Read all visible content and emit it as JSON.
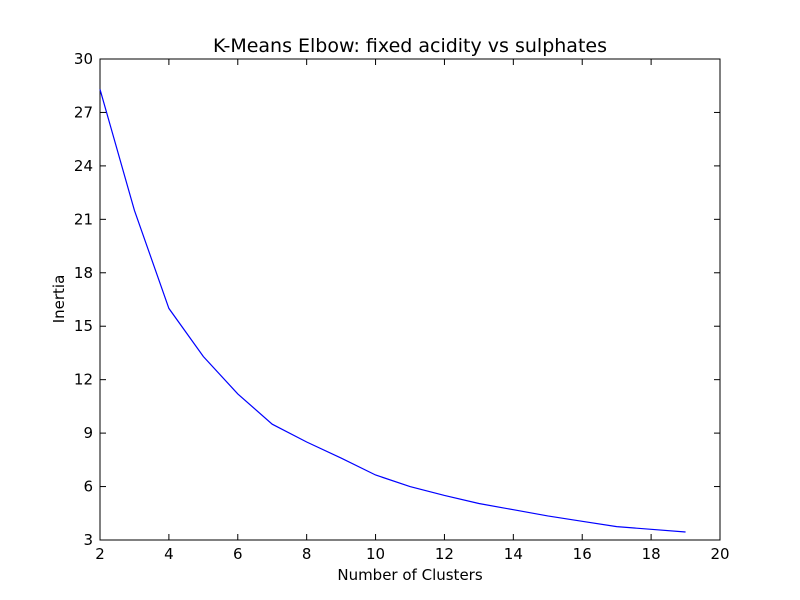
{
  "chart_data": {
    "type": "line",
    "title": "K-Means Elbow: fixed acidity vs sulphates",
    "xlabel": "Number of Clusters",
    "ylabel": "Inertia",
    "xlim": [
      2,
      20
    ],
    "ylim": [
      3,
      30
    ],
    "xticks": [
      2,
      4,
      6,
      8,
      10,
      12,
      14,
      16,
      18,
      20
    ],
    "yticks": [
      3,
      6,
      9,
      12,
      15,
      18,
      21,
      24,
      27,
      30
    ],
    "grid": false,
    "series": [
      {
        "color": "#0000ff",
        "x": [
          2,
          3,
          4,
          5,
          6,
          7,
          8,
          9,
          10,
          11,
          12,
          13,
          14,
          15,
          16,
          17,
          18,
          19
        ],
        "y": [
          28.3,
          21.5,
          16.0,
          13.3,
          11.2,
          9.5,
          8.5,
          7.6,
          6.65,
          6.0,
          5.5,
          5.05,
          4.7,
          4.35,
          4.05,
          3.75,
          3.6,
          3.45
        ]
      }
    ]
  }
}
